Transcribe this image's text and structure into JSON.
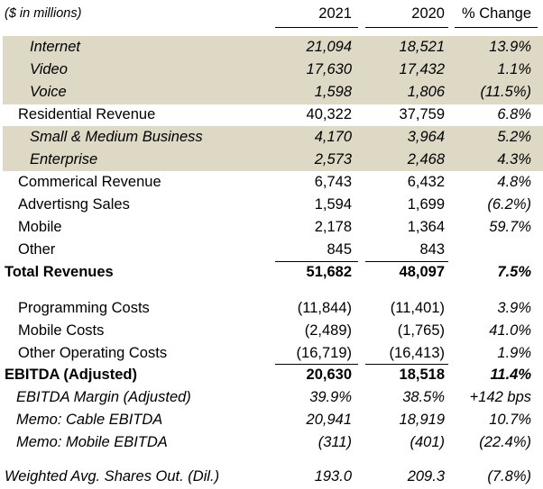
{
  "header": {
    "units": "($ in millions)",
    "col1": "2021",
    "col2": "2020",
    "col3": "% Change"
  },
  "rows": [
    {
      "label": "Internet",
      "v2021": "21,094",
      "v2020": "18,521",
      "chg": "13.9%"
    },
    {
      "label": "Video",
      "v2021": "17,630",
      "v2020": "17,432",
      "chg": "1.1%"
    },
    {
      "label": "Voice",
      "v2021": "1,598",
      "v2020": "1,806",
      "chg": "(11.5%)"
    },
    {
      "label": "Residential Revenue",
      "v2021": "40,322",
      "v2020": "37,759",
      "chg": "6.8%"
    },
    {
      "label": "Small & Medium Business",
      "v2021": "4,170",
      "v2020": "3,964",
      "chg": "5.2%"
    },
    {
      "label": "Enterprise",
      "v2021": "2,573",
      "v2020": "2,468",
      "chg": "4.3%"
    },
    {
      "label": "Commerical Revenue",
      "v2021": "6,743",
      "v2020": "6,432",
      "chg": "4.8%"
    },
    {
      "label": "Advertisng Sales",
      "v2021": "1,594",
      "v2020": "1,699",
      "chg": "(6.2%)"
    },
    {
      "label": "Mobile",
      "v2021": "2,178",
      "v2020": "1,364",
      "chg": "59.7%"
    },
    {
      "label": "Other",
      "v2021": "845",
      "v2020": "843",
      "chg": ""
    },
    {
      "label": "Total Revenues",
      "v2021": "51,682",
      "v2020": "48,097",
      "chg": "7.5%"
    },
    {
      "label": "Programming Costs",
      "v2021": "(11,844)",
      "v2020": "(11,401)",
      "chg": "3.9%"
    },
    {
      "label": "Mobile Costs",
      "v2021": "(2,489)",
      "v2020": "(1,765)",
      "chg": "41.0%"
    },
    {
      "label": "Other Operating Costs",
      "v2021": "(16,719)",
      "v2020": "(16,413)",
      "chg": "1.9%"
    },
    {
      "label": "EBITDA (Adjusted)",
      "v2021": "20,630",
      "v2020": "18,518",
      "chg": "11.4%"
    },
    {
      "label": "EBITDA Margin (Adjusted)",
      "v2021": "39.9%",
      "v2020": "38.5%",
      "chg": "+142 bps"
    },
    {
      "label": "Memo: Cable EBITDA",
      "v2021": "20,941",
      "v2020": "18,919",
      "chg": "10.7%"
    },
    {
      "label": "Memo: Mobile EBITDA",
      "v2021": "(311)",
      "v2020": "(401)",
      "chg": "(22.4%)"
    },
    {
      "label": "Weighted Avg. Shares Out. (Dil.)",
      "v2021": "193.0",
      "v2020": "209.3",
      "chg": "(7.8%)"
    }
  ]
}
